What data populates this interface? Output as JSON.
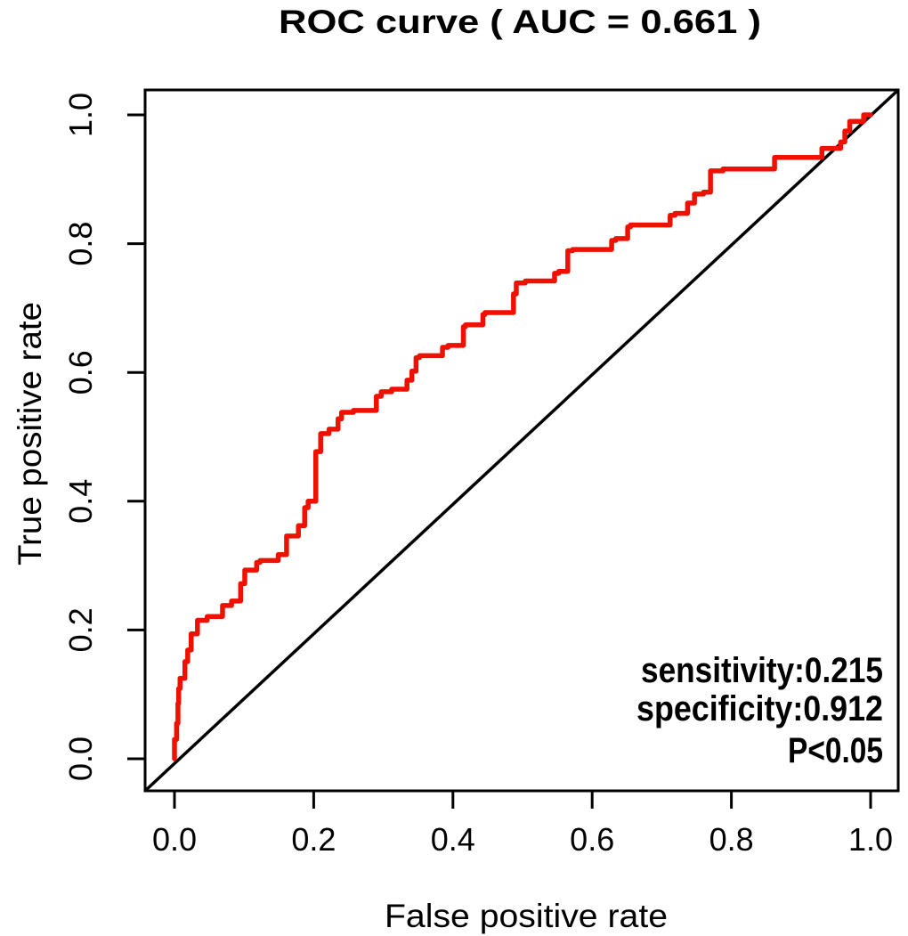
{
  "title": "ROC curve ( AUC =  0.661 )",
  "axes": {
    "xlabel": "False positive rate",
    "ylabel": "True positive rate"
  },
  "annotation": {
    "sensitivity_label": "sensitivity:0.215",
    "specificity_label": "specificity:0.912",
    "p_value_label": "P<0.05"
  },
  "colors": {
    "roc_curve": "#ee1100",
    "diagonal": "#000000",
    "axis": "#000000",
    "background": "#ffffff"
  },
  "chart_data": {
    "type": "line",
    "title": "ROC curve ( AUC =  0.661 )",
    "xlabel": "False positive rate",
    "ylabel": "True positive rate",
    "xlim": [
      0,
      1
    ],
    "ylim": [
      0,
      1
    ],
    "grid": false,
    "legend": "none",
    "auc": 0.661,
    "sensitivity": 0.215,
    "specificity": 0.912,
    "p_value": "P<0.05",
    "x_tick_values": [
      0.0,
      0.2,
      0.4,
      0.6,
      0.8,
      1.0
    ],
    "x_tick_labels": [
      "0.0",
      "0.2",
      "0.4",
      "0.6",
      "0.8",
      "1.0"
    ],
    "y_tick_values": [
      0.0,
      0.2,
      0.4,
      0.6,
      0.8,
      1.0
    ],
    "y_tick_labels": [
      "0.0",
      "0.2",
      "0.4",
      "0.6",
      "0.8",
      "1.0"
    ],
    "reference_diagonal": {
      "from": [
        0,
        0
      ],
      "to": [
        1,
        1
      ]
    },
    "series": [
      {
        "name": "ROC curve",
        "color": "#ee1100",
        "step": true,
        "points": [
          [
            0.0,
            0.0
          ],
          [
            0.003,
            0.03
          ],
          [
            0.005,
            0.055
          ],
          [
            0.006,
            0.086
          ],
          [
            0.008,
            0.109
          ],
          [
            0.015,
            0.125
          ],
          [
            0.019,
            0.151
          ],
          [
            0.024,
            0.169
          ],
          [
            0.033,
            0.194
          ],
          [
            0.047,
            0.215
          ],
          [
            0.069,
            0.221
          ],
          [
            0.082,
            0.238
          ],
          [
            0.095,
            0.245
          ],
          [
            0.101,
            0.272
          ],
          [
            0.118,
            0.293
          ],
          [
            0.123,
            0.305
          ],
          [
            0.149,
            0.308
          ],
          [
            0.161,
            0.317
          ],
          [
            0.178,
            0.346
          ],
          [
            0.187,
            0.362
          ],
          [
            0.192,
            0.39
          ],
          [
            0.203,
            0.4
          ],
          [
            0.21,
            0.477
          ],
          [
            0.222,
            0.505
          ],
          [
            0.235,
            0.512
          ],
          [
            0.24,
            0.528
          ],
          [
            0.257,
            0.538
          ],
          [
            0.29,
            0.541
          ],
          [
            0.297,
            0.563
          ],
          [
            0.312,
            0.57
          ],
          [
            0.334,
            0.574
          ],
          [
            0.341,
            0.588
          ],
          [
            0.347,
            0.602
          ],
          [
            0.352,
            0.623
          ],
          [
            0.385,
            0.626
          ],
          [
            0.393,
            0.639
          ],
          [
            0.415,
            0.642
          ],
          [
            0.418,
            0.671
          ],
          [
            0.443,
            0.674
          ],
          [
            0.446,
            0.69
          ],
          [
            0.487,
            0.693
          ],
          [
            0.491,
            0.722
          ],
          [
            0.504,
            0.739
          ],
          [
            0.546,
            0.742
          ],
          [
            0.552,
            0.754
          ],
          [
            0.565,
            0.757
          ],
          [
            0.572,
            0.789
          ],
          [
            0.628,
            0.791
          ],
          [
            0.634,
            0.805
          ],
          [
            0.651,
            0.808
          ],
          [
            0.655,
            0.826
          ],
          [
            0.712,
            0.829
          ],
          [
            0.719,
            0.844
          ],
          [
            0.737,
            0.847
          ],
          [
            0.747,
            0.863
          ],
          [
            0.76,
            0.877
          ],
          [
            0.77,
            0.88
          ],
          [
            0.788,
            0.913
          ],
          [
            0.862,
            0.916
          ],
          [
            0.866,
            0.934
          ],
          [
            0.93,
            0.934
          ],
          [
            0.957,
            0.948
          ],
          [
            0.963,
            0.958
          ],
          [
            0.97,
            0.975
          ],
          [
            0.99,
            0.99
          ],
          [
            1.0,
            1.0
          ]
        ]
      }
    ]
  }
}
